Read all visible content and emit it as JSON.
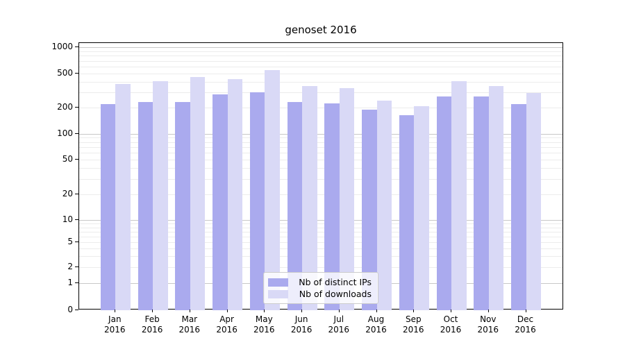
{
  "title": "genoset 2016",
  "chart_data": {
    "type": "bar",
    "title": "genoset 2016",
    "categories": [
      "Jan 2016",
      "Feb 2016",
      "Mar 2016",
      "Apr 2016",
      "May 2016",
      "Jun 2016",
      "Jul 2016",
      "Aug 2016",
      "Sep 2016",
      "Oct 2016",
      "Nov 2016",
      "Dec 2016"
    ],
    "series": [
      {
        "name": "Nb of distinct IPs",
        "color": "#aaaaee",
        "values": [
          220,
          235,
          235,
          285,
          300,
          235,
          225,
          190,
          165,
          270,
          270,
          220
        ]
      },
      {
        "name": "Nb of downloads",
        "color": "#d9d9f6",
        "values": [
          375,
          410,
          455,
          430,
          550,
          360,
          340,
          240,
          210,
          405,
          355,
          295
        ]
      }
    ],
    "xlabel": "",
    "ylabel": "",
    "yscale": "log-like with linear segment to 0",
    "y_ticks": [
      1000,
      500,
      200,
      100,
      50,
      20,
      10,
      5,
      2,
      1,
      0
    ],
    "ylim": [
      0,
      1130
    ],
    "grid": "horizontal major and minor",
    "legend_position": "lower center inside plot"
  },
  "colors": {
    "background": "#ffffff",
    "axis": "#000000",
    "major_grid": "#c8c8c8",
    "minor_grid": "#ececec",
    "bar_dark": "#aaaaee",
    "bar_light": "#d9d9f6",
    "legend_border": "#cccccc"
  }
}
